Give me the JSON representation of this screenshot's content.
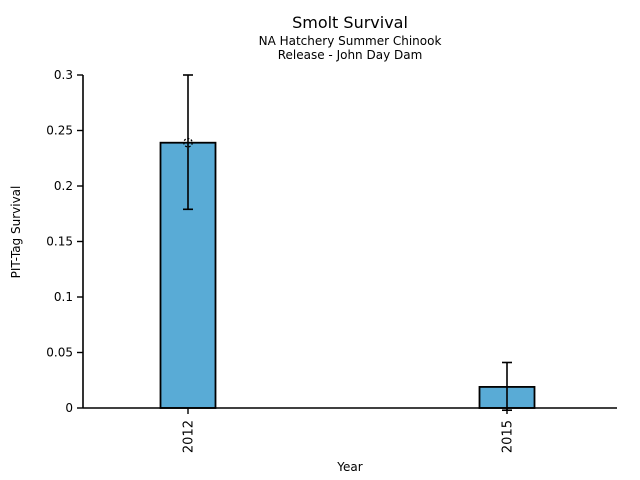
{
  "figure": {
    "title": "Smolt Survival",
    "subtitle_line1": "NA Hatchery Summer Chinook",
    "subtitle_line2": "Release - John Day Dam"
  },
  "chart_data": {
    "type": "bar",
    "title": "Smolt Survival",
    "subtitle": [
      "NA Hatchery Summer Chinook",
      "Release - John Day Dam"
    ],
    "xlabel": "Year",
    "ylabel": "PIT-Tag Survival",
    "categories": [
      "2012",
      "2015"
    ],
    "values": [
      0.239,
      0.019
    ],
    "error_bars": {
      "low": [
        0.179,
        -0.002
      ],
      "high": [
        0.3,
        0.041
      ]
    },
    "point_marker_on": [
      true,
      false
    ],
    "ylim": [
      0,
      0.3
    ],
    "yticks": [
      0,
      0.05,
      0.1,
      0.15,
      0.2,
      0.25,
      0.3
    ],
    "ytick_labels": [
      "0",
      "0.05",
      "0.1",
      "0.15",
      "0.2",
      "0.25",
      "0.3"
    ],
    "grid": false,
    "legend": "none",
    "colors": {
      "bar_fill": "#59ABD6",
      "bar_edge": "#000000",
      "error_bar": "#000000",
      "axis": "#000000",
      "text": "#000000",
      "background": "#ffffff"
    }
  }
}
